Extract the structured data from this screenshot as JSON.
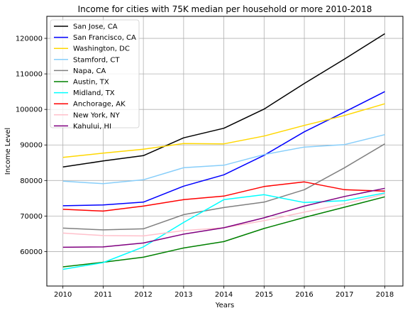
{
  "chart_data": {
    "type": "line",
    "title": "Income for cities with 75K median per household or more 2010-2018",
    "xlabel": "Years",
    "ylabel": "Income Level",
    "x": [
      2010,
      2011,
      2012,
      2013,
      2014,
      2015,
      2016,
      2017,
      2018
    ],
    "xlim": [
      2009.6,
      2018.45
    ],
    "ylim": [
      50300,
      126200
    ],
    "yticks": [
      60000,
      70000,
      80000,
      90000,
      100000,
      110000,
      120000
    ],
    "grid": true,
    "legend_placement": "top-left",
    "series": [
      {
        "name": "San Jose, CA",
        "color": "#000000",
        "values": [
          83800,
          85500,
          87000,
          92000,
          94700,
          100100,
          107300,
          114200,
          121300
        ]
      },
      {
        "name": "San Francisco, CA",
        "color": "#0000ff",
        "values": [
          72900,
          73100,
          73900,
          78400,
          81600,
          87100,
          93700,
          99300,
          105000
        ]
      },
      {
        "name": "Washington, DC",
        "color": "#ffd700",
        "values": [
          86500,
          87700,
          88800,
          90400,
          90300,
          92500,
          95500,
          98300,
          101600
        ]
      },
      {
        "name": "Stamford, CT",
        "color": "#87cefa",
        "values": [
          79800,
          79100,
          80200,
          83600,
          84300,
          87300,
          89400,
          90100,
          92900
        ]
      },
      {
        "name": "Napa, CA",
        "color": "#808080",
        "values": [
          66600,
          66100,
          66400,
          70400,
          72400,
          73900,
          77400,
          83600,
          90300
        ]
      },
      {
        "name": "Austin, TX",
        "color": "#008000",
        "values": [
          55700,
          57000,
          58400,
          61000,
          62800,
          66500,
          69600,
          72500,
          75400
        ]
      },
      {
        "name": "Midland, TX",
        "color": "#00ffff",
        "values": [
          55000,
          56900,
          61300,
          68200,
          74600,
          76000,
          73800,
          74300,
          76500
        ]
      },
      {
        "name": "Anchorage, AK",
        "color": "#ff0000",
        "values": [
          71900,
          71400,
          72800,
          74600,
          75600,
          78300,
          79600,
          77400,
          77000
        ]
      },
      {
        "name": "New York, NY",
        "color": "#ffc0cb",
        "values": [
          65200,
          64500,
          64400,
          65900,
          66700,
          68700,
          71100,
          73400,
          76200
        ]
      },
      {
        "name": "Kahului, HI",
        "color": "#800080",
        "values": [
          61200,
          61300,
          62400,
          64900,
          66700,
          69500,
          72800,
          75500,
          77800
        ]
      }
    ]
  }
}
